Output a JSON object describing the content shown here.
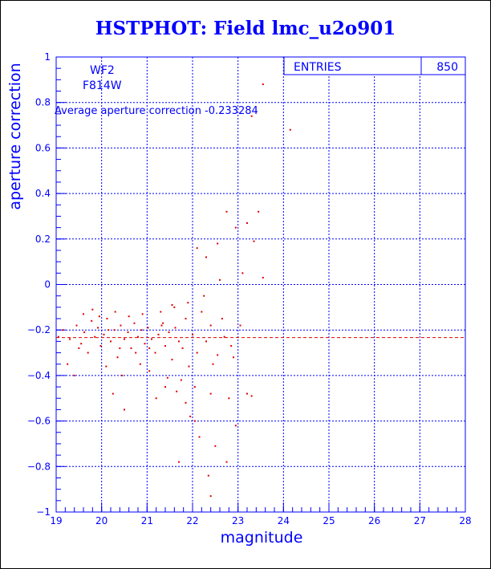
{
  "chart_data": {
    "type": "scatter",
    "title": "HSTPHOT: Field lmc_u2o901",
    "xlabel": "magnitude",
    "ylabel": "aperture correction",
    "xlim": [
      19,
      28
    ],
    "ylim": [
      -1,
      1
    ],
    "x_ticks": [
      "19",
      "20",
      "21",
      "22",
      "23",
      "24",
      "25",
      "26",
      "27",
      "28"
    ],
    "y_ticks": [
      "-1",
      "-0.8",
      "-0.6",
      "-0.4",
      "-0.2",
      "0",
      "0.2",
      "0.4",
      "0.6",
      "0.8",
      "1"
    ],
    "grid": true,
    "annotations": [
      "WF2",
      "F814W",
      "Average aperture correction -0.233284"
    ],
    "stats_box": {
      "label": "ENTRIES",
      "value": "850"
    },
    "average_line": {
      "y": -0.233284,
      "style": "dashed"
    },
    "point_color": "#dd0000",
    "axis_color": "#0000ff",
    "points": [
      [
        19.15,
        -0.2
      ],
      [
        19.3,
        -0.24
      ],
      [
        19.45,
        -0.18
      ],
      [
        19.55,
        -0.26
      ],
      [
        19.62,
        -0.21
      ],
      [
        19.7,
        -0.3
      ],
      [
        19.78,
        -0.16
      ],
      [
        19.85,
        -0.23
      ],
      [
        19.92,
        -0.19
      ],
      [
        19.98,
        -0.27
      ],
      [
        20.05,
        -0.22
      ],
      [
        20.12,
        -0.15
      ],
      [
        20.2,
        -0.25
      ],
      [
        20.28,
        -0.2
      ],
      [
        20.35,
        -0.32
      ],
      [
        20.42,
        -0.18
      ],
      [
        20.5,
        -0.24
      ],
      [
        20.58,
        -0.21
      ],
      [
        20.65,
        -0.28
      ],
      [
        20.72,
        -0.17
      ],
      [
        20.8,
        -0.23
      ],
      [
        20.88,
        -0.2
      ],
      [
        20.95,
        -0.26
      ],
      [
        21.02,
        -0.19
      ],
      [
        21.1,
        -0.24
      ],
      [
        21.18,
        -0.3
      ],
      [
        21.25,
        -0.22
      ],
      [
        21.32,
        -0.18
      ],
      [
        21.4,
        -0.27
      ],
      [
        21.48,
        -0.21
      ],
      [
        21.55,
        -0.33
      ],
      [
        21.62,
        -0.19
      ],
      [
        21.7,
        -0.25
      ],
      [
        21.78,
        -0.28
      ],
      [
        21.85,
        -0.15
      ],
      [
        21.92,
        -0.36
      ],
      [
        22.0,
        -0.22
      ],
      [
        22.1,
        -0.3
      ],
      [
        22.2,
        -0.12
      ],
      [
        22.3,
        -0.25
      ],
      [
        22.4,
        -0.18
      ],
      [
        22.55,
        -0.31
      ],
      [
        22.7,
        -0.23
      ],
      [
        22.85,
        -0.27
      ],
      [
        19.25,
        -0.35
      ],
      [
        19.4,
        -0.4
      ],
      [
        19.6,
        -0.13
      ],
      [
        19.8,
        -0.11
      ],
      [
        20.1,
        -0.36
      ],
      [
        20.3,
        -0.12
      ],
      [
        20.45,
        -0.4
      ],
      [
        20.6,
        -0.14
      ],
      [
        20.9,
        -0.13
      ],
      [
        21.05,
        -0.38
      ],
      [
        21.3,
        -0.12
      ],
      [
        21.45,
        -0.41
      ],
      [
        21.6,
        -0.1
      ],
      [
        21.75,
        -0.42
      ],
      [
        21.9,
        -0.08
      ],
      [
        22.05,
        -0.45
      ],
      [
        22.25,
        -0.05
      ],
      [
        22.4,
        -0.48
      ],
      [
        22.6,
        0.02
      ],
      [
        22.8,
        -0.5
      ],
      [
        20.25,
        -0.48
      ],
      [
        20.5,
        -0.55
      ],
      [
        21.2,
        -0.5
      ],
      [
        21.4,
        -0.45
      ],
      [
        21.65,
        -0.47
      ],
      [
        21.85,
        -0.52
      ],
      [
        21.95,
        -0.58
      ],
      [
        22.05,
        -0.6
      ],
      [
        22.15,
        -0.67
      ],
      [
        22.35,
        -0.84
      ],
      [
        22.5,
        -0.71
      ],
      [
        22.75,
        -0.78
      ],
      [
        22.95,
        -0.62
      ],
      [
        23.2,
        -0.48
      ],
      [
        23.3,
        -0.49
      ],
      [
        22.1,
        0.16
      ],
      [
        22.3,
        0.12
      ],
      [
        22.55,
        0.18
      ],
      [
        22.75,
        0.32
      ],
      [
        22.95,
        0.25
      ],
      [
        23.1,
        0.05
      ],
      [
        23.2,
        0.27
      ],
      [
        23.35,
        0.19
      ],
      [
        23.45,
        0.32
      ],
      [
        23.55,
        0.88
      ],
      [
        23.3,
        0.74
      ],
      [
        24.15,
        0.68
      ],
      [
        23.55,
        0.03
      ],
      [
        21.7,
        -0.78
      ],
      [
        22.4,
        -0.93
      ],
      [
        21.05,
        -0.28
      ],
      [
        20.75,
        -0.3
      ],
      [
        20.15,
        -0.2
      ],
      [
        19.95,
        -0.14
      ],
      [
        20.85,
        -0.35
      ],
      [
        21.55,
        -0.09
      ],
      [
        22.65,
        -0.15
      ],
      [
        22.9,
        -0.32
      ],
      [
        23.05,
        -0.18
      ],
      [
        22.45,
        -0.35
      ],
      [
        21.35,
        -0.17
      ],
      [
        20.4,
        -0.28
      ],
      [
        19.5,
        -0.28
      ],
      [
        19.05,
        -0.23
      ]
    ]
  }
}
